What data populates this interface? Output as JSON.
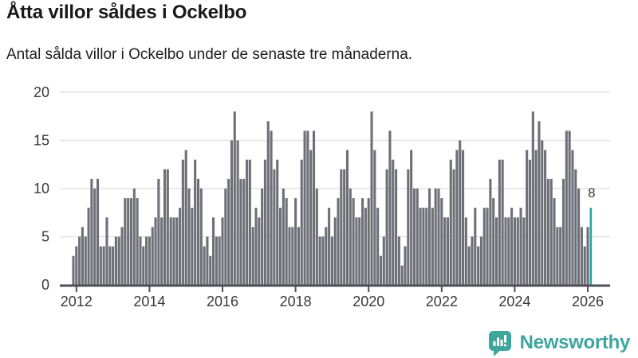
{
  "header": {
    "title": "Åtta villor såldes i Ockelbo",
    "subtitle": "Antal sålda villor i Ockelbo under de senaste tre månaderna."
  },
  "chart_data": {
    "type": "bar",
    "title": "Åtta villor såldes i Ockelbo",
    "subtitle": "Antal sålda villor i Ockelbo under de senaste tre månaderna.",
    "x_start": "2011-12",
    "x_interval": "month",
    "x_tick_labels": [
      "2012",
      "2014",
      "2016",
      "2018",
      "2020",
      "2022",
      "2024",
      "2026"
    ],
    "x_tick_indices": [
      1,
      25,
      49,
      73,
      97,
      121,
      145,
      169
    ],
    "y_ticks": [
      0,
      5,
      10,
      15,
      20
    ],
    "ylim": [
      0,
      20
    ],
    "grid": true,
    "bar_color": "#6f6f78",
    "highlight_color": "#1fa8a1",
    "grid_color": "#e4e4e4",
    "axis_color": "#4f4f57",
    "values": [
      3,
      4,
      5,
      6,
      5,
      8,
      11,
      10,
      11,
      4,
      4,
      7,
      4,
      4,
      5,
      5,
      6,
      9,
      9,
      9,
      10,
      9,
      5,
      4,
      5,
      5,
      6,
      7,
      11,
      7,
      12,
      12,
      7,
      7,
      7,
      8,
      13,
      14,
      10,
      8,
      13,
      11,
      10,
      4,
      5,
      3,
      7,
      5,
      5,
      7,
      10,
      11,
      15,
      18,
      15,
      11,
      11,
      13,
      13,
      6,
      8,
      7,
      10,
      13,
      17,
      16,
      12,
      13,
      8,
      10,
      9,
      6,
      6,
      9,
      6,
      13,
      16,
      16,
      14,
      16,
      10,
      5,
      5,
      6,
      8,
      5,
      7,
      9,
      12,
      12,
      14,
      10,
      9,
      7,
      7,
      9,
      8,
      9,
      18,
      14,
      8,
      3,
      5,
      12,
      16,
      13,
      12,
      5,
      2,
      4,
      12,
      14,
      10,
      10,
      8,
      8,
      8,
      10,
      8,
      10,
      10,
      9,
      7,
      7,
      13,
      12,
      14,
      15,
      14,
      7,
      4,
      5,
      8,
      4,
      5,
      8,
      8,
      11,
      9,
      7,
      13,
      13,
      7,
      7,
      8,
      7,
      7,
      8,
      7,
      14,
      13,
      18,
      14,
      17,
      15,
      14,
      11,
      11,
      9,
      6,
      6,
      11,
      16,
      16,
      14,
      12,
      10,
      6,
      4,
      6,
      8
    ],
    "highlight": {
      "index": 170,
      "value": 8,
      "label": "8"
    }
  },
  "footer": {
    "brand": "Newsworthy",
    "brand_color": "#3fa69e"
  }
}
